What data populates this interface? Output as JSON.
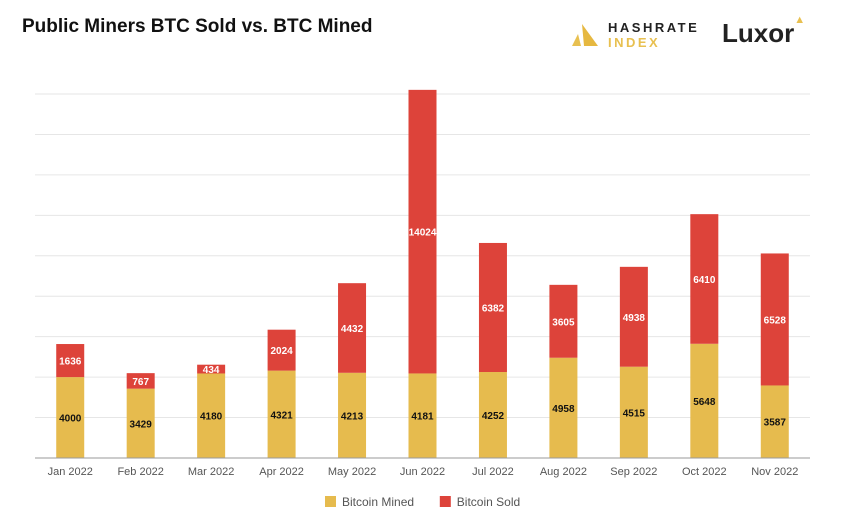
{
  "title": "Public Miners BTC Sold vs. BTC Mined",
  "logos": {
    "hashrate_index": [
      "HASHRATE",
      "INDEX"
    ],
    "luxor": "Luxor"
  },
  "colors": {
    "mined": "#e6bb4e",
    "sold": "#dd433a",
    "grid": "#e6e6e6"
  },
  "chart_data": {
    "type": "bar",
    "stacked": true,
    "title": "Public Miners BTC Sold vs. BTC Mined",
    "categories": [
      "Jan 2022",
      "Feb 2022",
      "Mar 2022",
      "Apr 2022",
      "May 2022",
      "Jun 2022",
      "Jul 2022",
      "Aug 2022",
      "Sep 2022",
      "Oct 2022",
      "Nov 2022"
    ],
    "series": [
      {
        "name": "Bitcoin Mined",
        "values": [
          4000,
          3429,
          4180,
          4321,
          4213,
          4181,
          4252,
          4958,
          4515,
          5648,
          3587
        ]
      },
      {
        "name": "Bitcoin Sold",
        "values": [
          1636,
          767,
          434,
          2024,
          4432,
          14024,
          6382,
          3605,
          4938,
          6410,
          6528
        ]
      }
    ],
    "ylim": [
      0,
      18000
    ],
    "ygrid_step": 2000,
    "grid": true,
    "y_tick_labels_shown": false,
    "legend": "bottom"
  }
}
